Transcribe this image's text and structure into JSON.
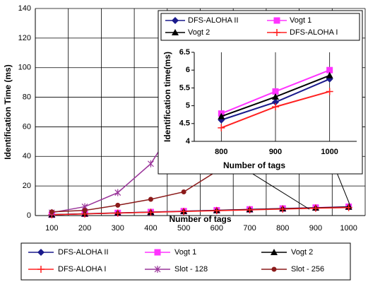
{
  "chart_data": [
    {
      "type": "line",
      "y_label": "Identification Time (ms)",
      "x_label": "Number of tags",
      "categories": [
        "100",
        "200",
        "300",
        "400",
        "500",
        "600",
        "700",
        "800",
        "900",
        "1000"
      ],
      "ylim": [
        0,
        140
      ],
      "yticks": [
        0,
        20,
        40,
        60,
        80,
        100,
        120,
        140
      ],
      "grid": true,
      "series": [
        {
          "name": "DFS-ALOHA II",
          "color": "#1a1a8c",
          "marker": "diamond",
          "values": [
            0.6,
            1.2,
            1.7,
            2.3,
            2.9,
            3.5,
            4.0,
            4.6,
            5.1,
            5.75
          ]
        },
        {
          "name": "Vogt 1",
          "color": "#ff33ff",
          "marker": "square",
          "values": [
            0.6,
            1.2,
            1.8,
            2.4,
            3.0,
            3.6,
            4.2,
            4.78,
            5.4,
            6.0
          ]
        },
        {
          "name": "Vogt 2",
          "color": "#000000",
          "marker": "triangle",
          "values": [
            0.6,
            1.2,
            1.8,
            2.3,
            2.9,
            3.5,
            4.1,
            4.7,
            5.25,
            5.85
          ]
        },
        {
          "name": "DFS-ALOHA I",
          "color": "#ff2020",
          "marker": "plus",
          "values": [
            0.55,
            1.1,
            1.65,
            2.2,
            2.75,
            3.3,
            3.85,
            4.38,
            4.97,
            5.4
          ]
        },
        {
          "name": "Slot - 128",
          "color": "#993399",
          "marker": "cross",
          "values": [
            2,
            6,
            15.5,
            35,
            70,
            null,
            null,
            null,
            null,
            null
          ]
        },
        {
          "name": "Slot - 256",
          "color": "#8b1a1a",
          "marker": "circle",
          "values": [
            2.5,
            3.5,
            7,
            11,
            16,
            30,
            null,
            null,
            null,
            null
          ]
        }
      ]
    },
    {
      "type": "line",
      "y_label": "Identification time(ms)",
      "x_label": "Number of tags",
      "categories": [
        "800",
        "900",
        "1000"
      ],
      "ylim": [
        4,
        6.5
      ],
      "yticks": [
        4,
        4.5,
        5,
        5.5,
        6,
        6.5
      ],
      "grid": false,
      "series": [
        {
          "name": "DFS-ALOHA II",
          "color": "#1a1a8c",
          "marker": "diamond",
          "values": [
            4.6,
            5.1,
            5.75
          ]
        },
        {
          "name": "Vogt 1",
          "color": "#ff33ff",
          "marker": "square",
          "values": [
            4.78,
            5.4,
            6.0
          ]
        },
        {
          "name": "Vogt 2",
          "color": "#000000",
          "marker": "triangle",
          "values": [
            4.7,
            5.25,
            5.85
          ]
        },
        {
          "name": "DFS-ALOHA I",
          "color": "#ff2020",
          "marker": "plus",
          "values": [
            4.38,
            4.97,
            5.4
          ]
        }
      ]
    }
  ]
}
